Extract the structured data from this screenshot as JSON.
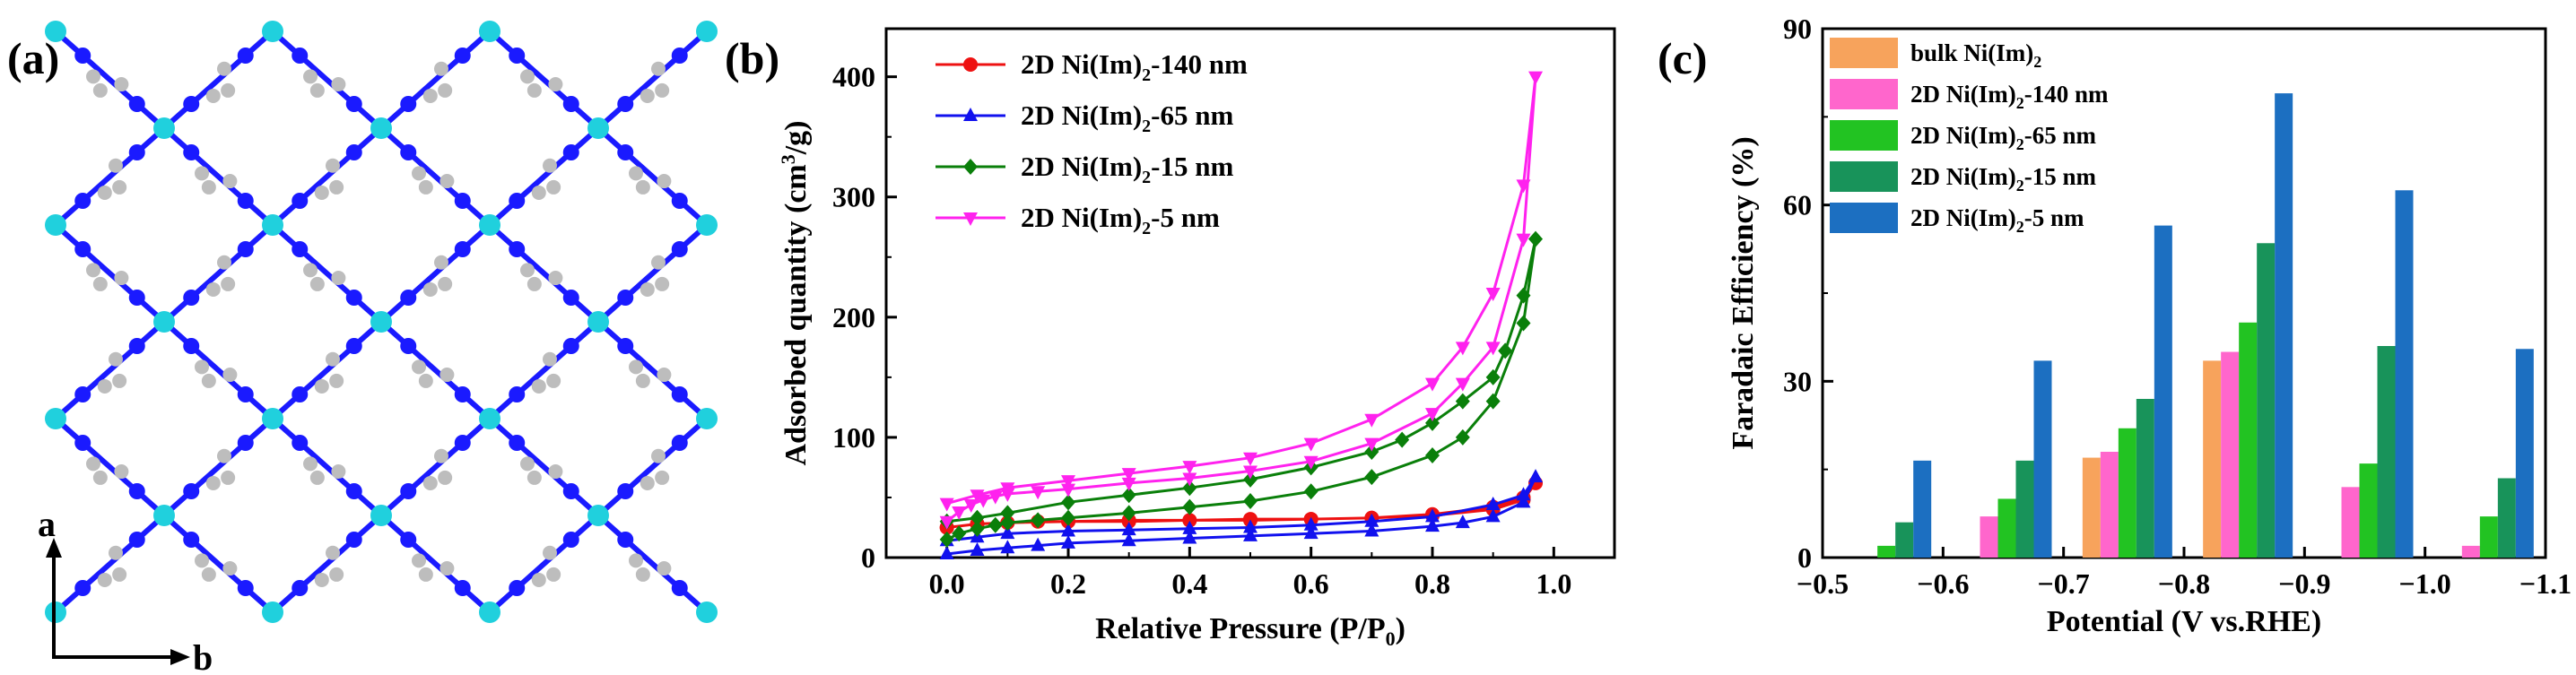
{
  "panels": {
    "a": {
      "label": "(a)",
      "axis_a": "a",
      "axis_b": "b"
    },
    "b": {
      "label": "(b)"
    },
    "c": {
      "label": "(c)"
    }
  },
  "colors": {
    "lattice_node": "#20d0dd",
    "lattice_n": "#1a1aff",
    "lattice_c": "#bdbdbd",
    "bulk": "#f7a35c",
    "s140": "#ff66cc",
    "s65": "#22c322",
    "s15": "#18935a",
    "s5": "#1c6fc1",
    "b_red": "#ee1111",
    "b_blue": "#1111ee",
    "b_green": "#0a7f0a",
    "b_magenta": "#ff22ee"
  },
  "chart_data": [
    {
      "panel": "(b)",
      "type": "line",
      "xlabel": "Relative Pressure (P/P0)",
      "ylabel": "Adsorbed quantity (cm3/g)",
      "xlim": [
        -0.1,
        1.1
      ],
      "ylim": [
        0,
        440
      ],
      "xticks": [
        0.0,
        0.2,
        0.4,
        0.6,
        0.8,
        1.0
      ],
      "xtick_labels": [
        "0.0",
        "0.2",
        "0.4",
        "0.6",
        "0.8",
        "1.0"
      ],
      "yticks": [
        0,
        100,
        200,
        300,
        400
      ],
      "ytick_labels": [
        "0",
        "100",
        "200",
        "300",
        "400"
      ],
      "legend_placement": "top-left",
      "series": [
        {
          "name": "2D Ni(Im)2-140 nm",
          "marker": "circle",
          "x": [
            0.0,
            0.05,
            0.1,
            0.15,
            0.2,
            0.3,
            0.4,
            0.5,
            0.6,
            0.7,
            0.8,
            0.9,
            0.95,
            0.97,
            0.95,
            0.9,
            0.8,
            0.7,
            0.6,
            0.5,
            0.4,
            0.3,
            0.2,
            0.1,
            0.05,
            0.0
          ],
          "y": [
            25,
            28,
            29,
            30,
            30,
            31,
            31,
            32,
            32,
            33,
            35,
            40,
            48,
            62,
            50,
            42,
            36,
            33,
            32,
            31,
            31,
            30,
            30,
            29,
            28,
            25
          ]
        },
        {
          "name": "2D Ni(Im)2-65 nm",
          "marker": "triangle-up",
          "x": [
            0.0,
            0.05,
            0.1,
            0.15,
            0.2,
            0.3,
            0.4,
            0.5,
            0.6,
            0.7,
            0.8,
            0.85,
            0.9,
            0.95,
            0.97,
            0.95,
            0.9,
            0.8,
            0.7,
            0.6,
            0.5,
            0.4,
            0.3,
            0.2,
            0.1,
            0.05,
            0.0
          ],
          "y": [
            3,
            6,
            8,
            10,
            12,
            14,
            16,
            18,
            20,
            22,
            26,
            29,
            34,
            46,
            67,
            52,
            44,
            34,
            30,
            27,
            25,
            24,
            23,
            22,
            20,
            17,
            14
          ]
        },
        {
          "name": "2D Ni(Im)2-15 nm",
          "marker": "diamond",
          "x": [
            0.0,
            0.02,
            0.05,
            0.08,
            0.1,
            0.15,
            0.2,
            0.3,
            0.4,
            0.5,
            0.6,
            0.7,
            0.8,
            0.85,
            0.9,
            0.95,
            0.97,
            0.95,
            0.92,
            0.9,
            0.85,
            0.8,
            0.75,
            0.7,
            0.6,
            0.5,
            0.4,
            0.3,
            0.2,
            0.1,
            0.05,
            0.0
          ],
          "y": [
            15,
            20,
            24,
            27,
            29,
            31,
            33,
            37,
            42,
            47,
            55,
            67,
            85,
            100,
            130,
            195,
            265,
            218,
            172,
            150,
            130,
            112,
            98,
            88,
            75,
            65,
            58,
            52,
            46,
            37,
            33,
            30
          ]
        },
        {
          "name": "2D Ni(Im)2-5 nm",
          "marker": "triangle-down",
          "x": [
            0.0,
            0.02,
            0.04,
            0.06,
            0.08,
            0.1,
            0.15,
            0.2,
            0.3,
            0.4,
            0.5,
            0.6,
            0.7,
            0.8,
            0.85,
            0.9,
            0.95,
            0.97,
            0.95,
            0.9,
            0.85,
            0.8,
            0.7,
            0.6,
            0.5,
            0.4,
            0.3,
            0.2,
            0.1,
            0.05,
            0.0
          ],
          "y": [
            30,
            38,
            44,
            48,
            51,
            53,
            55,
            57,
            62,
            66,
            72,
            80,
            95,
            120,
            145,
            175,
            265,
            400,
            310,
            220,
            175,
            145,
            115,
            95,
            83,
            76,
            70,
            64,
            58,
            52,
            45
          ]
        }
      ]
    },
    {
      "panel": "(c)",
      "type": "bar",
      "xlabel": "Potential (V vs.RHE)",
      "ylabel": "Faradaic Efficiency (%)",
      "xlim": [
        -0.5,
        -1.1
      ],
      "ylim": [
        0,
        90
      ],
      "xticks": [
        -0.5,
        -0.6,
        -0.7,
        -0.8,
        -0.9,
        -1.0,
        -1.1
      ],
      "xtick_labels": [
        "-0.5",
        "-0.6",
        "-0.7",
        "-0.8",
        "-0.9",
        "-1.0",
        "-1.1"
      ],
      "yticks": [
        0,
        30,
        60,
        90
      ],
      "ytick_labels": [
        "0",
        "30",
        "60",
        "90"
      ],
      "legend_placement": "top-left",
      "categories": [
        "-0.55",
        "-0.65",
        "-0.75",
        "-0.85",
        "-0.95",
        "-1.05"
      ],
      "series": [
        {
          "name": "bulk Ni(Im)2",
          "values": [
            0,
            0,
            17,
            33.5,
            0,
            0
          ]
        },
        {
          "name": "2D Ni(Im)2-140 nm",
          "values": [
            0,
            7,
            18,
            35,
            12,
            2
          ]
        },
        {
          "name": "2D Ni(Im)2-65 nm",
          "values": [
            2,
            10,
            22,
            40,
            16,
            7
          ]
        },
        {
          "name": "2D Ni(Im)2-15 nm",
          "values": [
            6,
            16.5,
            27,
            53.5,
            36,
            13.5
          ]
        },
        {
          "name": "2D Ni(Im)2-5 nm",
          "values": [
            16.5,
            33.5,
            56.5,
            79,
            62.5,
            35.5
          ]
        }
      ]
    }
  ]
}
